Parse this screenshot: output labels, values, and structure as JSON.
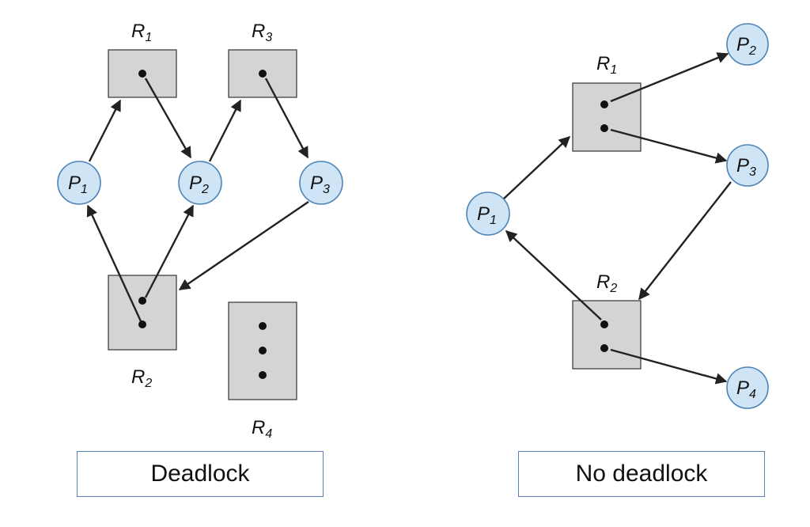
{
  "deadlock_diagram": {
    "caption": "Deadlock",
    "processes": [
      {
        "id": "P1",
        "letter": "P",
        "sub": "1"
      },
      {
        "id": "P2",
        "letter": "P",
        "sub": "2"
      },
      {
        "id": "P3",
        "letter": "P",
        "sub": "3"
      }
    ],
    "resources": [
      {
        "id": "R1",
        "letter": "R",
        "sub": "1",
        "instances": 1
      },
      {
        "id": "R2",
        "letter": "R",
        "sub": "2",
        "instances": 2
      },
      {
        "id": "R3",
        "letter": "R",
        "sub": "3",
        "instances": 1
      },
      {
        "id": "R4",
        "letter": "R",
        "sub": "4",
        "instances": 3
      }
    ],
    "edges": [
      {
        "from": "P1",
        "to": "R1",
        "kind": "request"
      },
      {
        "from": "R1",
        "to": "P2",
        "kind": "assignment"
      },
      {
        "from": "P2",
        "to": "R3",
        "kind": "request"
      },
      {
        "from": "R3",
        "to": "P3",
        "kind": "assignment"
      },
      {
        "from": "P3",
        "to": "R2",
        "kind": "request"
      },
      {
        "from": "R2",
        "to": "P1",
        "kind": "assignment"
      },
      {
        "from": "R2",
        "to": "P2",
        "kind": "assignment"
      }
    ]
  },
  "no_deadlock_diagram": {
    "caption": "No deadlock",
    "processes": [
      {
        "id": "P1",
        "letter": "P",
        "sub": "1"
      },
      {
        "id": "P2",
        "letter": "P",
        "sub": "2"
      },
      {
        "id": "P3",
        "letter": "P",
        "sub": "3"
      },
      {
        "id": "P4",
        "letter": "P",
        "sub": "4"
      }
    ],
    "resources": [
      {
        "id": "R1",
        "letter": "R",
        "sub": "1",
        "instances": 2
      },
      {
        "id": "R2",
        "letter": "R",
        "sub": "2",
        "instances": 2
      }
    ],
    "edges": [
      {
        "from": "P1",
        "to": "R1",
        "kind": "request"
      },
      {
        "from": "R1",
        "to": "P2",
        "kind": "assignment"
      },
      {
        "from": "R1",
        "to": "P3",
        "kind": "assignment"
      },
      {
        "from": "P3",
        "to": "R2",
        "kind": "request"
      },
      {
        "from": "R2",
        "to": "P1",
        "kind": "assignment"
      },
      {
        "from": "R2",
        "to": "P4",
        "kind": "assignment"
      }
    ]
  },
  "colors": {
    "process_fill": "#cfe4f4",
    "process_stroke": "#4d84b8",
    "resource_fill": "#d4d4d4",
    "caption_border": "#5b7fb8"
  }
}
